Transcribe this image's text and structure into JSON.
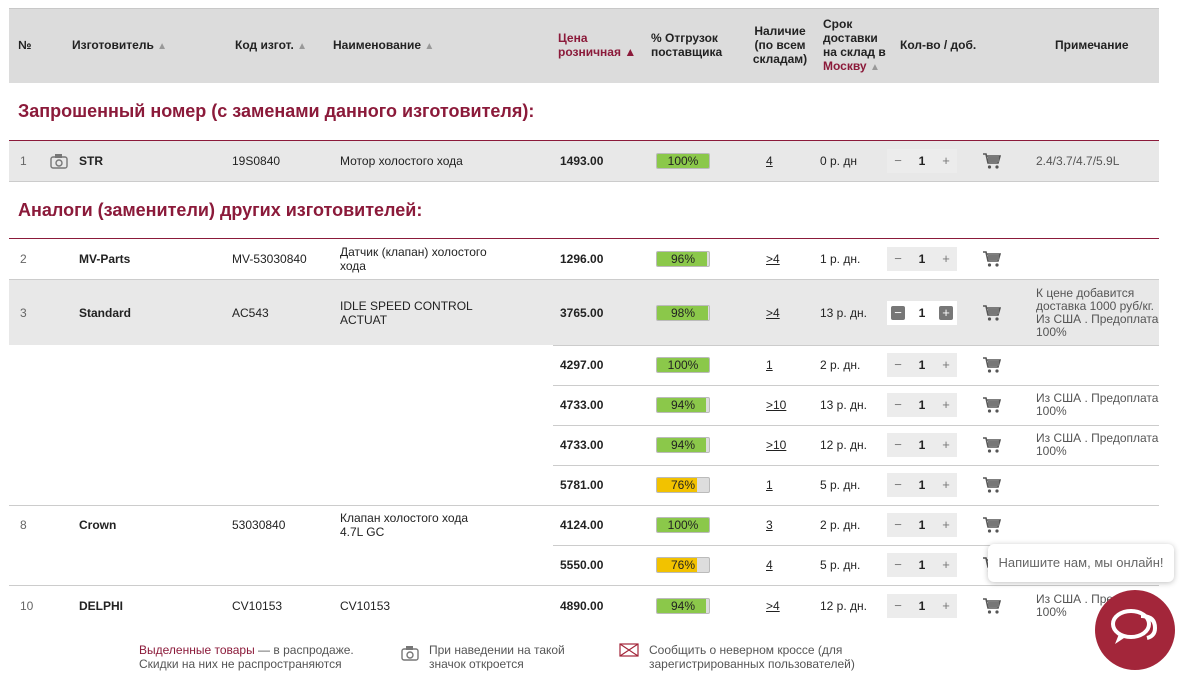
{
  "headers": {
    "num": "№",
    "manufacturer": "Изготовитель",
    "code": "Код изгот.",
    "name": "Наименование",
    "price_l1": "Цена",
    "price_l2": "розничная ▲",
    "shipment_l1": "% Отгрузок",
    "shipment_l2": "поставщика",
    "avail_l1": "Наличие",
    "avail_l2": "(по всем",
    "avail_l3": "складам)",
    "delivery_l1": "Срок",
    "delivery_l2": "доставки",
    "delivery_l3": "на склад в",
    "delivery_city": "Москву",
    "qty": "Кол-во / доб.",
    "note": "Примечание",
    "sort_arrow": "▲"
  },
  "sections": {
    "requested": "Запрошенный номер (с заменами данного изготовителя):",
    "analogs": "Аналоги (заменители) других изготовителей:"
  },
  "rows": [
    {
      "num": "1",
      "mfr": "STR",
      "code": "19S0840",
      "name1": "Мотор холостого хода",
      "name2": "",
      "price": "1493.00",
      "pct": "100%",
      "pct_val": 100,
      "avail": "4",
      "delivery": "0 р. дн",
      "qty": "1",
      "note1": "2.4/3.7/4.7/5.9L",
      "note2": "",
      "note3": "",
      "note4": ""
    },
    {
      "num": "2",
      "mfr": "MV-Parts",
      "code": "MV-53030840",
      "name1": "Датчик (клапан) холостого",
      "name2": "хода",
      "price": "1296.00",
      "pct": "96%",
      "pct_val": 96,
      "avail": ">4",
      "delivery": "1 р. дн.",
      "qty": "1",
      "note1": "",
      "note2": "",
      "note3": "",
      "note4": ""
    },
    {
      "num": "3",
      "mfr": "Standard",
      "code": "AC543",
      "name1": "IDLE SPEED CONTROL",
      "name2": "ACTUAT",
      "price": "3765.00",
      "pct": "98%",
      "pct_val": 98,
      "avail": ">4",
      "delivery": "13 р. дн.",
      "qty": "1",
      "note1": "К цене добавится",
      "note2": "доставка 1000 руб/кг.",
      "note3": "Из США . Предоплата",
      "note4": "100%"
    },
    {
      "num": "",
      "mfr": "",
      "code": "",
      "name1": "",
      "name2": "",
      "price": "4297.00",
      "pct": "100%",
      "pct_val": 100,
      "avail": "1",
      "delivery": "2 р. дн.",
      "qty": "1",
      "note1": "",
      "note2": "",
      "note3": "",
      "note4": ""
    },
    {
      "num": "",
      "mfr": "",
      "code": "",
      "name1": "",
      "name2": "",
      "price": "4733.00",
      "pct": "94%",
      "pct_val": 94,
      "avail": ">10",
      "delivery": "13 р. дн.",
      "qty": "1",
      "note1": "Из США . Предоплата",
      "note2": "100%",
      "note3": "",
      "note4": ""
    },
    {
      "num": "",
      "mfr": "",
      "code": "",
      "name1": "",
      "name2": "",
      "price": "4733.00",
      "pct": "94%",
      "pct_val": 94,
      "avail": ">10",
      "delivery": "12 р. дн.",
      "qty": "1",
      "note1": "Из США . Предоплата",
      "note2": "100%",
      "note3": "",
      "note4": ""
    },
    {
      "num": "",
      "mfr": "",
      "code": "",
      "name1": "",
      "name2": "",
      "price": "5781.00",
      "pct": "76%",
      "pct_val": 76,
      "avail": "1",
      "delivery": "5 р. дн.",
      "qty": "1",
      "note1": "",
      "note2": "",
      "note3": "",
      "note4": ""
    },
    {
      "num": "8",
      "mfr": "Crown",
      "code": "53030840",
      "name1": "Клапан холостого хода",
      "name2": "4.7L GC",
      "price": "4124.00",
      "pct": "100%",
      "pct_val": 100,
      "avail": "3",
      "delivery": "2 р. дн.",
      "qty": "1",
      "note1": "",
      "note2": "",
      "note3": "",
      "note4": ""
    },
    {
      "num": "",
      "mfr": "",
      "code": "",
      "name1": "",
      "name2": "",
      "price": "5550.00",
      "pct": "76%",
      "pct_val": 76,
      "avail": "4",
      "delivery": "5 р. дн.",
      "qty": "1",
      "note1": "",
      "note2": "",
      "note3": "",
      "note4": ""
    },
    {
      "num": "10",
      "mfr": "DELPHI",
      "code": "CV10153",
      "name1": "CV10153",
      "name2": "",
      "price": "4890.00",
      "pct": "94%",
      "pct_val": 94,
      "avail": ">4",
      "delivery": "12 р. дн.",
      "qty": "1",
      "note1": "Из США . Предоплата",
      "note2": "100%",
      "note3": "",
      "note4": ""
    }
  ],
  "qty_minus": "−",
  "qty_plus": "+",
  "chat": {
    "text": "Напишите нам, мы онлайн!"
  },
  "footer": {
    "sale_hl": "Выделенные товары",
    "sale_rest": " — в распродаже.",
    "sale_l2": "Скидки на них не распространяются",
    "camera_l1": "При наведении на такой",
    "camera_l2": "значок откроется",
    "report_l1": "Сообщить о неверном кроссе (для",
    "report_l2": "зарегистрированных пользователей)"
  },
  "colors": {
    "accent": "#8b1a3a",
    "bar_green": "#8bc84a",
    "bar_yellow": "#f2c200",
    "chat": "#a3263a"
  }
}
